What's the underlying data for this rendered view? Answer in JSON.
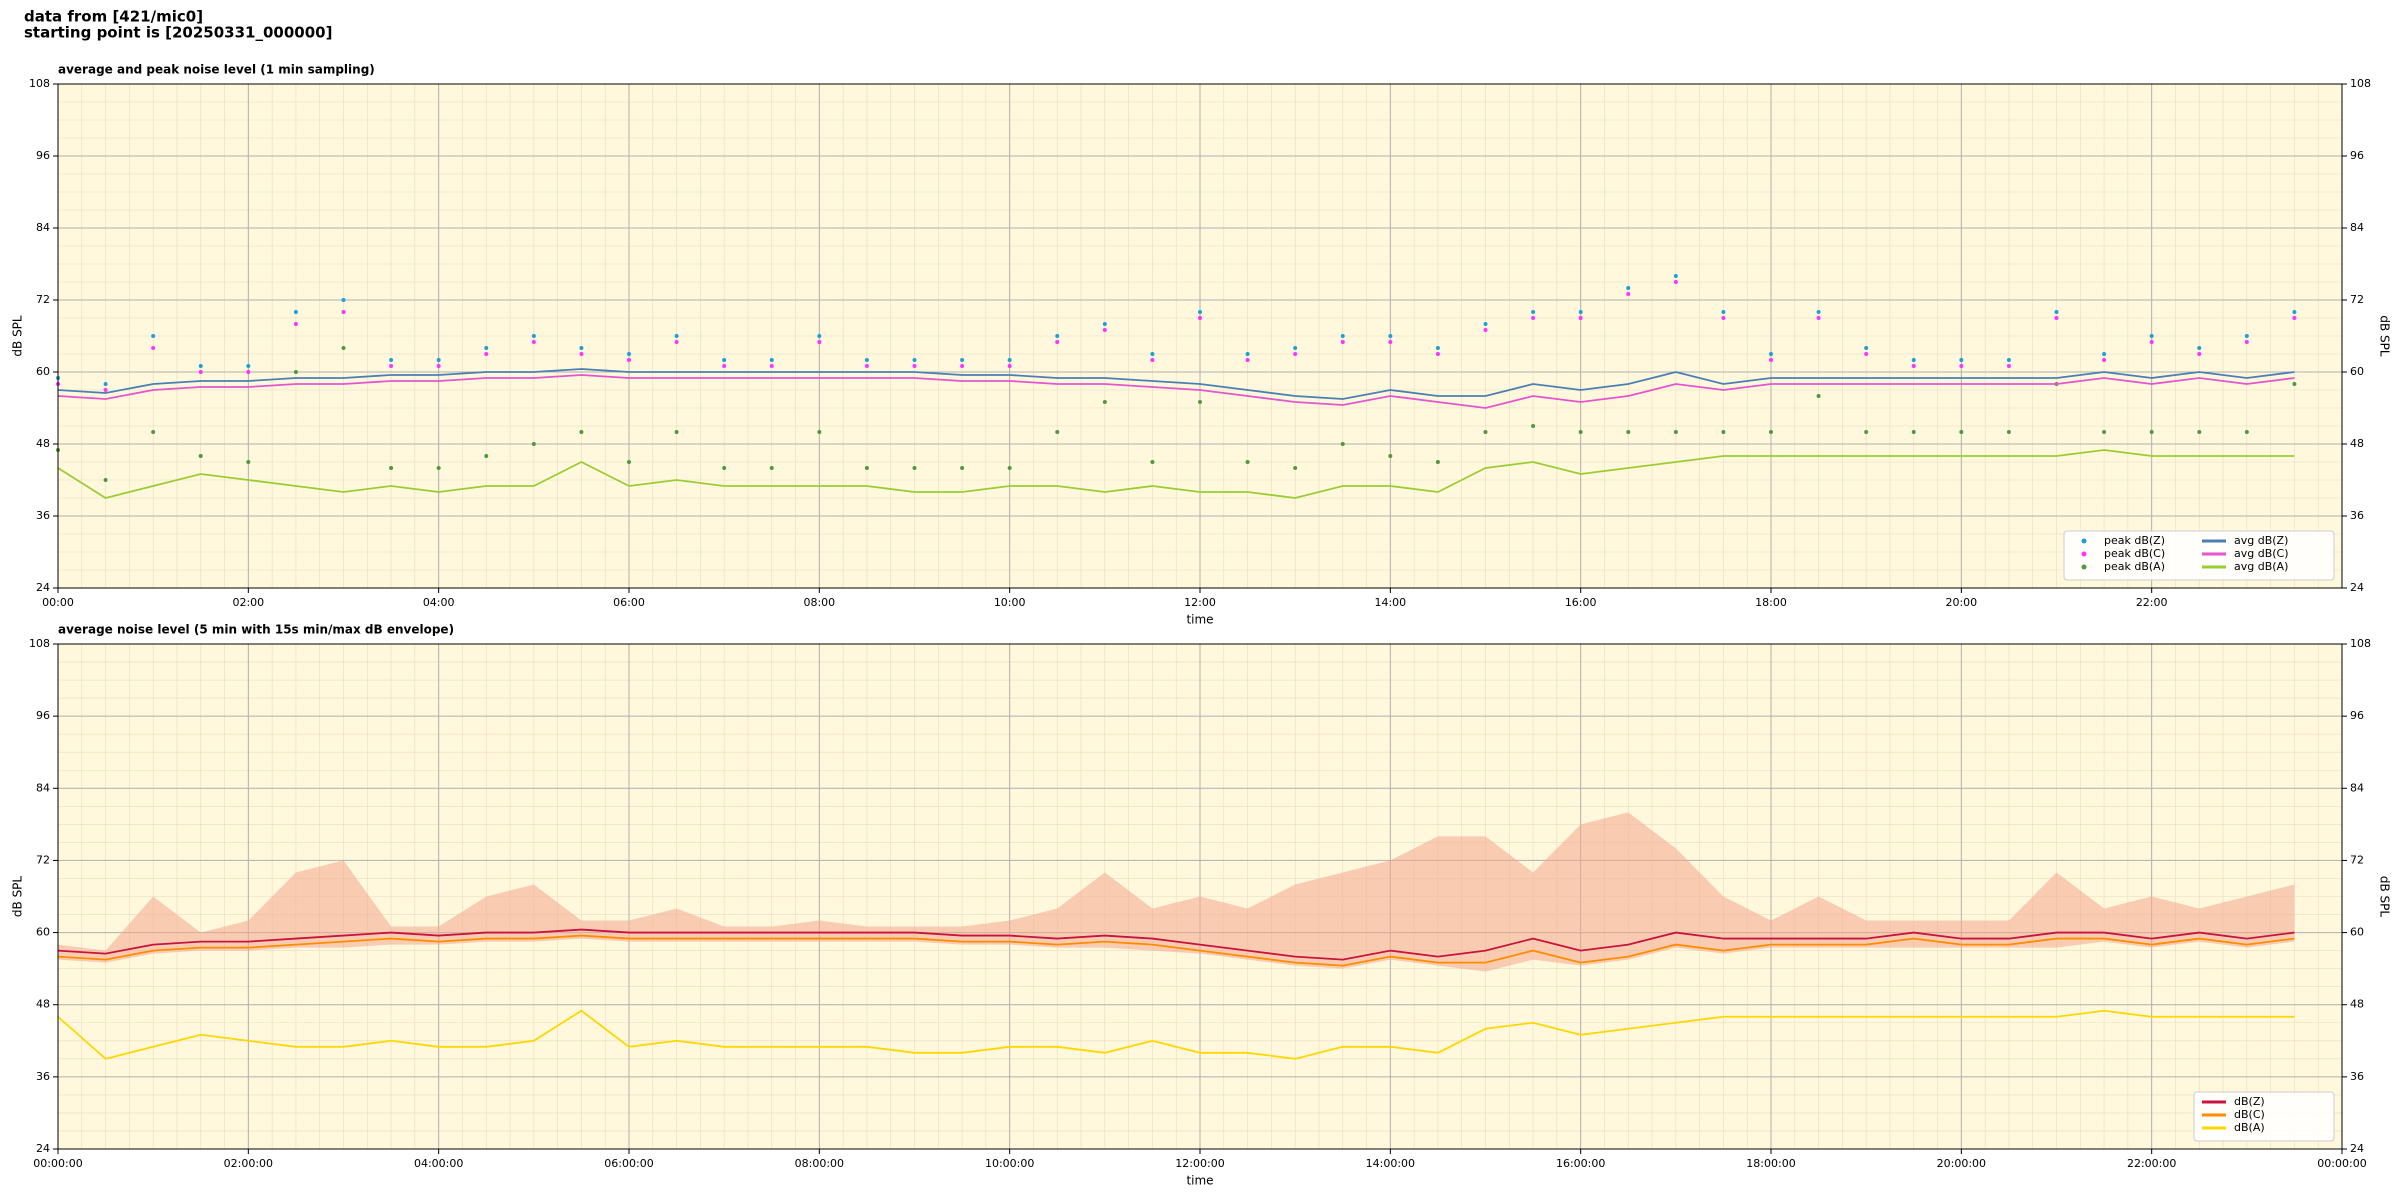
{
  "header": {
    "lines": [
      "data from [421/mic0]",
      "starting point is [20250331_000000]"
    ]
  },
  "chart_data": [
    {
      "type": "line",
      "title": "average and peak noise level (1 min sampling)",
      "xlabel": "time",
      "ylabel": "dB SPL",
      "x": [
        0,
        0.5,
        1,
        1.5,
        2,
        2.5,
        3,
        3.5,
        4,
        4.5,
        5,
        5.5,
        6,
        6.5,
        7,
        7.5,
        8,
        8.5,
        9,
        9.5,
        10,
        10.5,
        11,
        11.5,
        12,
        12.5,
        13,
        13.5,
        14,
        14.5,
        15,
        15.5,
        16,
        16.5,
        17,
        17.5,
        18,
        18.5,
        19,
        19.5,
        20,
        20.5,
        21,
        21.5,
        22,
        22.5,
        23,
        23.5
      ],
      "xlim": [
        0,
        24
      ],
      "xticks": [
        {
          "value": 0,
          "label": "00:00"
        },
        {
          "value": 2,
          "label": "02:00"
        },
        {
          "value": 4,
          "label": "04:00"
        },
        {
          "value": 6,
          "label": "06:00"
        },
        {
          "value": 8,
          "label": "08:00"
        },
        {
          "value": 10,
          "label": "10:00"
        },
        {
          "value": 12,
          "label": "12:00"
        },
        {
          "value": 14,
          "label": "14:00"
        },
        {
          "value": 16,
          "label": "16:00"
        },
        {
          "value": 18,
          "label": "18:00"
        },
        {
          "value": 20,
          "label": "20:00"
        },
        {
          "value": 22,
          "label": "22:00"
        }
      ],
      "ylim": [
        24,
        108
      ],
      "yticks": [
        24,
        36,
        48,
        60,
        72,
        84,
        96,
        108
      ],
      "grid": true,
      "legend": "lower right",
      "series": [
        {
          "name": "peak dB(Z)",
          "kind": "scatter",
          "color": "#1f9fd8",
          "values": [
            59,
            58,
            66,
            61,
            61,
            70,
            72,
            62,
            62,
            64,
            66,
            64,
            63,
            66,
            62,
            62,
            66,
            62,
            62,
            62,
            62,
            66,
            68,
            63,
            70,
            63,
            64,
            66,
            66,
            64,
            68,
            70,
            70,
            74,
            76,
            70,
            63,
            70,
            64,
            62,
            62,
            62,
            70,
            63,
            66,
            64,
            66,
            70
          ]
        },
        {
          "name": "peak dB(C)",
          "kind": "scatter",
          "color": "#ff33ff",
          "values": [
            58,
            57,
            64,
            60,
            60,
            68,
            70,
            61,
            61,
            63,
            65,
            63,
            62,
            65,
            61,
            61,
            65,
            61,
            61,
            61,
            61,
            65,
            67,
            62,
            69,
            62,
            63,
            65,
            65,
            63,
            67,
            69,
            69,
            73,
            75,
            69,
            62,
            69,
            63,
            61,
            61,
            61,
            69,
            62,
            65,
            63,
            65,
            69
          ]
        },
        {
          "name": "peak dB(A)",
          "kind": "scatter",
          "color": "#4e9a3a",
          "values": [
            47,
            42,
            50,
            46,
            45,
            60,
            64,
            44,
            44,
            46,
            48,
            50,
            45,
            50,
            44,
            44,
            50,
            44,
            44,
            44,
            44,
            50,
            55,
            45,
            55,
            45,
            44,
            48,
            46,
            45,
            50,
            51,
            50,
            50,
            50,
            50,
            50,
            56,
            50,
            50,
            50,
            50,
            58,
            50,
            50,
            50,
            50,
            58
          ]
        },
        {
          "name": "avg dB(Z)",
          "kind": "line",
          "color": "#4a7fb5",
          "values": [
            57,
            56.5,
            58,
            58.5,
            58.5,
            59,
            59,
            59.5,
            59.5,
            60,
            60,
            60.5,
            60,
            60,
            60,
            60,
            60,
            60,
            60,
            59.5,
            59.5,
            59,
            59,
            58.5,
            58,
            57,
            56,
            55.5,
            57,
            56,
            56,
            58,
            57,
            58,
            60,
            58,
            59,
            59,
            59,
            59,
            59,
            59,
            59,
            60,
            59,
            60,
            59,
            60
          ]
        },
        {
          "name": "avg dB(C)",
          "kind": "line",
          "color": "#e455d0",
          "values": [
            56,
            55.5,
            57,
            57.5,
            57.5,
            58,
            58,
            58.5,
            58.5,
            59,
            59,
            59.5,
            59,
            59,
            59,
            59,
            59,
            59,
            59,
            58.5,
            58.5,
            58,
            58,
            57.5,
            57,
            56,
            55,
            54.5,
            56,
            55,
            54,
            56,
            55,
            56,
            58,
            57,
            58,
            58,
            58,
            58,
            58,
            58,
            58,
            59,
            58,
            59,
            58,
            59
          ]
        },
        {
          "name": "avg dB(A)",
          "kind": "line",
          "color": "#9acd32",
          "values": [
            44,
            39,
            41,
            43,
            42,
            41,
            40,
            41,
            40,
            41,
            41,
            45,
            41,
            42,
            41,
            41,
            41,
            41,
            40,
            40,
            41,
            41,
            40,
            41,
            40,
            40,
            39,
            41,
            41,
            40,
            44,
            45,
            43,
            44,
            45,
            46,
            46,
            46,
            46,
            46,
            46,
            46,
            46,
            47,
            46,
            46,
            46,
            46
          ]
        }
      ]
    },
    {
      "type": "line",
      "title": "average noise level (5 min with 15s min/max dB envelope)",
      "xlabel": "time",
      "ylabel": "dB SPL",
      "x": [
        0,
        0.5,
        1,
        1.5,
        2,
        2.5,
        3,
        3.5,
        4,
        4.5,
        5,
        5.5,
        6,
        6.5,
        7,
        7.5,
        8,
        8.5,
        9,
        9.5,
        10,
        10.5,
        11,
        11.5,
        12,
        12.5,
        13,
        13.5,
        14,
        14.5,
        15,
        15.5,
        16,
        16.5,
        17,
        17.5,
        18,
        18.5,
        19,
        19.5,
        20,
        20.5,
        21,
        21.5,
        22,
        22.5,
        23,
        23.5
      ],
      "xlim": [
        0,
        24
      ],
      "xticks": [
        {
          "value": 0,
          "label": "00:00:00"
        },
        {
          "value": 2,
          "label": "02:00:00"
        },
        {
          "value": 4,
          "label": "04:00:00"
        },
        {
          "value": 6,
          "label": "06:00:00"
        },
        {
          "value": 8,
          "label": "08:00:00"
        },
        {
          "value": 10,
          "label": "10:00:00"
        },
        {
          "value": 12,
          "label": "12:00:00"
        },
        {
          "value": 14,
          "label": "14:00:00"
        },
        {
          "value": 16,
          "label": "16:00:00"
        },
        {
          "value": 18,
          "label": "18:00:00"
        },
        {
          "value": 20,
          "label": "20:00:00"
        },
        {
          "value": 22,
          "label": "22:00:00"
        },
        {
          "value": 24,
          "label": "00:00:00"
        }
      ],
      "ylim": [
        24,
        108
      ],
      "yticks": [
        24,
        36,
        48,
        60,
        72,
        84,
        96,
        108
      ],
      "grid": true,
      "legend": "lower right",
      "envelope": {
        "color": "#f4a890",
        "upper": [
          58,
          57,
          66,
          60,
          62,
          70,
          72,
          61,
          61,
          66,
          68,
          62,
          62,
          64,
          61,
          61,
          62,
          61,
          61,
          61,
          62,
          64,
          70,
          64,
          66,
          64,
          68,
          70,
          72,
          76,
          76,
          70,
          78,
          80,
          74,
          66,
          62,
          66,
          62,
          62,
          62,
          62,
          70,
          64,
          66,
          64,
          66,
          68
        ],
        "lower": [
          55.5,
          55,
          56.5,
          57,
          57,
          57.5,
          57.5,
          58,
          58,
          58.5,
          58.5,
          59,
          58.5,
          58.5,
          58.5,
          58.5,
          58.5,
          58.5,
          58.5,
          58,
          58,
          57.5,
          57.5,
          57,
          56.5,
          55.5,
          54.5,
          54,
          55.5,
          54.5,
          53.5,
          55.5,
          54.5,
          55.5,
          57.5,
          56.5,
          57.5,
          57.5,
          57.5,
          57.5,
          57.5,
          57.5,
          57.5,
          58.5,
          57.5,
          58.5,
          57.5,
          58.5
        ]
      },
      "series": [
        {
          "name": "dB(Z)",
          "kind": "line",
          "color": "#c8143c",
          "values": [
            57,
            56.5,
            58,
            58.5,
            58.5,
            59,
            59.5,
            60,
            59.5,
            60,
            60,
            60.5,
            60,
            60,
            60,
            60,
            60,
            60,
            60,
            59.5,
            59.5,
            59,
            59.5,
            59,
            58,
            57,
            56,
            55.5,
            57,
            56,
            57,
            59,
            57,
            58,
            60,
            59,
            59,
            59,
            59,
            60,
            59,
            59,
            60,
            60,
            59,
            60,
            59,
            60
          ]
        },
        {
          "name": "dB(C)",
          "kind": "line",
          "color": "#ff8c00",
          "values": [
            56,
            55.5,
            57,
            57.5,
            57.5,
            58,
            58.5,
            59,
            58.5,
            59,
            59,
            59.5,
            59,
            59,
            59,
            59,
            59,
            59,
            59,
            58.5,
            58.5,
            58,
            58.5,
            58,
            57,
            56,
            55,
            54.5,
            56,
            55,
            55,
            57,
            55,
            56,
            58,
            57,
            58,
            58,
            58,
            59,
            58,
            58,
            59,
            59,
            58,
            59,
            58,
            59
          ]
        },
        {
          "name": "dB(A)",
          "kind": "line",
          "color": "#ffd700",
          "values": [
            46,
            39,
            41,
            43,
            42,
            41,
            41,
            42,
            41,
            41,
            42,
            47,
            41,
            42,
            41,
            41,
            41,
            41,
            40,
            40,
            41,
            41,
            40,
            42,
            40,
            40,
            39,
            41,
            41,
            40,
            44,
            45,
            43,
            44,
            45,
            46,
            46,
            46,
            46,
            46,
            46,
            46,
            46,
            47,
            46,
            46,
            46,
            46
          ]
        }
      ]
    }
  ]
}
